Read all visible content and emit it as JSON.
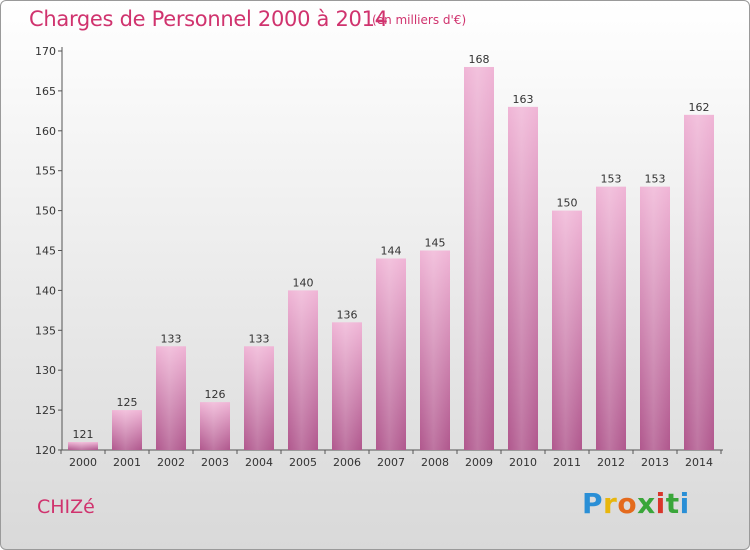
{
  "header": {
    "title": "Charges de Personnel 2000 à 2014",
    "unit": "(en milliers d'€)"
  },
  "footer": {
    "town": "CHIZé",
    "logo": {
      "text": "Proxiti",
      "letters": [
        "P",
        "r",
        "o",
        "x",
        "i",
        "t",
        "i"
      ]
    }
  },
  "chart_data": {
    "type": "bar",
    "title": "Charges de Personnel 2000 à 2014",
    "subtitle": "(en milliers d'€)",
    "xlabel": "",
    "ylabel": "",
    "categories": [
      "2000",
      "2001",
      "2002",
      "2003",
      "2004",
      "2005",
      "2006",
      "2007",
      "2008",
      "2009",
      "2010",
      "2011",
      "2012",
      "2013",
      "2014"
    ],
    "values": [
      121,
      125,
      133,
      126,
      133,
      140,
      136,
      144,
      145,
      168,
      163,
      150,
      153,
      153,
      162
    ],
    "ylim": [
      120,
      170
    ],
    "yticks": [
      120,
      125,
      130,
      135,
      140,
      145,
      150,
      155,
      160,
      165,
      170
    ],
    "grid": false,
    "bar_color": "#d982b4",
    "bar_color_dark": "#b0578d",
    "bar_color_light": "#f0b5d6"
  }
}
